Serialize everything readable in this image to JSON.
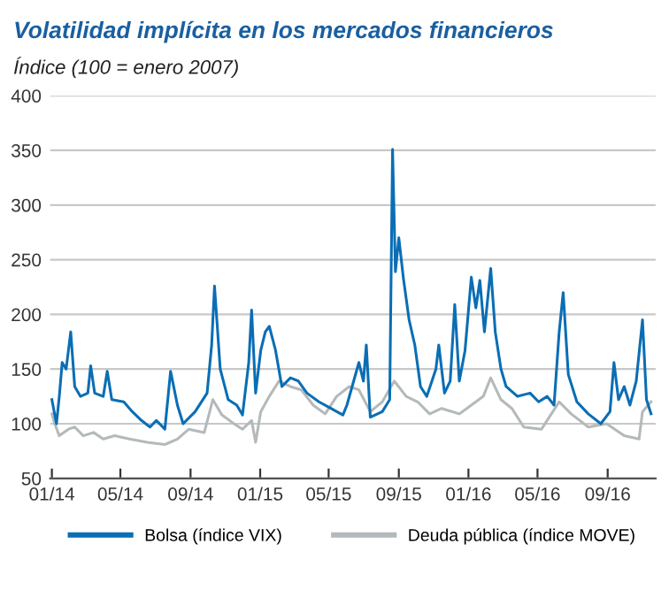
{
  "chart_data": {
    "type": "line",
    "title": "Volatilidad implícita en los mercados financieros",
    "subtitle": "Índice (100 = enero 2007)",
    "xlim": [
      "2013-12-29",
      "2016-11-24"
    ],
    "xticks": [
      {
        "value": "2014-01-01",
        "label": "01/14"
      },
      {
        "value": "2014-05-01",
        "label": "05/14"
      },
      {
        "value": "2014-09-01",
        "label": "09/14"
      },
      {
        "value": "2015-01-01",
        "label": "01/15"
      },
      {
        "value": "2015-05-01",
        "label": "05/15"
      },
      {
        "value": "2015-09-01",
        "label": "09/15"
      },
      {
        "value": "2016-01-01",
        "label": "01/16"
      },
      {
        "value": "2016-05-01",
        "label": "05/16"
      },
      {
        "value": "2016-09-01",
        "label": "09/16"
      }
    ],
    "ylim": [
      50,
      400
    ],
    "yticks": [
      50,
      100,
      150,
      200,
      250,
      300,
      350,
      400
    ],
    "grid": "y",
    "legend": "bottom",
    "line_style": "solid",
    "series": [
      {
        "name": "Bolsa (índice VIX)",
        "color": "#0a6eb4",
        "x": [
          "2014-01-01",
          "2014-01-09",
          "2014-01-14",
          "2014-01-19",
          "2014-01-26",
          "2014-02-03",
          "2014-02-10",
          "2014-02-20",
          "2014-03-05",
          "2014-03-10",
          "2014-03-17",
          "2014-04-01",
          "2014-04-08",
          "2014-04-16",
          "2014-05-07",
          "2014-05-22",
          "2014-06-07",
          "2014-06-22",
          "2014-07-03",
          "2014-07-18",
          "2014-07-28",
          "2014-08-09",
          "2014-08-19",
          "2014-09-09",
          "2014-09-30",
          "2014-10-08",
          "2014-10-13",
          "2014-10-23",
          "2014-11-06",
          "2014-11-21",
          "2014-12-01",
          "2014-12-12",
          "2014-12-17",
          "2014-12-24",
          "2015-01-02",
          "2015-01-10",
          "2015-01-17",
          "2015-01-28",
          "2015-02-08",
          "2015-02-23",
          "2015-03-09",
          "2015-03-24",
          "2015-04-14",
          "2015-05-05",
          "2015-05-26",
          "2015-06-02",
          "2015-06-23",
          "2015-07-01",
          "2015-07-06",
          "2015-07-13",
          "2015-08-03",
          "2015-08-16",
          "2015-08-21",
          "2015-08-26",
          "2015-09-01",
          "2015-09-09",
          "2015-09-19",
          "2015-09-29",
          "2015-10-09",
          "2015-10-20",
          "2015-11-05",
          "2015-11-10",
          "2015-11-20",
          "2015-11-30",
          "2015-12-08",
          "2015-12-16",
          "2015-12-26",
          "2016-01-06",
          "2016-01-14",
          "2016-01-21",
          "2016-01-29",
          "2016-02-09",
          "2016-02-17",
          "2016-02-27",
          "2016-03-07",
          "2016-03-27",
          "2016-04-18",
          "2016-05-03",
          "2016-05-18",
          "2016-05-30",
          "2016-06-08",
          "2016-06-15",
          "2016-06-24",
          "2016-07-09",
          "2016-07-29",
          "2016-08-20",
          "2016-09-05",
          "2016-09-12",
          "2016-09-20",
          "2016-09-30",
          "2016-10-10",
          "2016-10-21",
          "2016-11-01",
          "2016-11-08",
          "2016-11-16"
        ],
        "values": [
          122,
          100,
          125,
          156,
          150,
          184,
          134,
          125,
          128,
          153,
          128,
          125,
          148,
          122,
          120,
          111,
          103,
          97,
          103,
          95,
          148,
          117,
          100,
          111,
          128,
          172,
          226,
          150,
          122,
          117,
          108,
          156,
          204,
          128,
          167,
          184,
          189,
          167,
          134,
          142,
          139,
          128,
          120,
          114,
          108,
          117,
          156,
          139,
          172,
          106,
          111,
          122,
          351,
          239,
          270,
          233,
          195,
          172,
          134,
          125,
          150,
          172,
          128,
          139,
          209,
          139,
          167,
          234,
          206,
          231,
          184,
          242,
          184,
          150,
          134,
          125,
          128,
          120,
          125,
          117,
          184,
          220,
          145,
          120,
          109,
          100,
          111,
          156,
          122,
          134,
          117,
          139,
          195,
          122,
          109
        ]
      },
      {
        "name": "Deuda pública (índice MOVE)",
        "color": "#b4b9bb",
        "x": [
          "2014-01-01",
          "2014-01-06",
          "2014-01-14",
          "2014-01-30",
          "2014-02-10",
          "2014-02-25",
          "2014-03-15",
          "2014-04-01",
          "2014-04-21",
          "2014-05-17",
          "2014-06-17",
          "2014-07-18",
          "2014-08-09",
          "2014-08-29",
          "2014-09-25",
          "2014-10-10",
          "2014-10-26",
          "2014-11-16",
          "2014-12-01",
          "2014-12-17",
          "2014-12-24",
          "2015-01-02",
          "2015-01-17",
          "2015-02-03",
          "2015-02-23",
          "2015-03-14",
          "2015-04-04",
          "2015-04-25",
          "2015-05-15",
          "2015-06-06",
          "2015-06-23",
          "2015-07-13",
          "2015-08-03",
          "2015-08-24",
          "2015-09-14",
          "2015-10-04",
          "2015-10-25",
          "2015-11-15",
          "2015-12-16",
          "2016-01-06",
          "2016-01-27",
          "2016-02-09",
          "2016-02-27",
          "2016-03-17",
          "2016-04-07",
          "2016-05-08",
          "2016-06-08",
          "2016-06-29",
          "2016-07-29",
          "2016-08-30",
          "2016-09-30",
          "2016-10-26",
          "2016-11-01",
          "2016-11-16"
        ],
        "values": [
          109,
          100,
          89,
          95,
          97,
          89,
          92,
          86,
          89,
          86,
          83,
          81,
          86,
          95,
          92,
          122,
          108,
          100,
          95,
          103,
          83,
          111,
          125,
          139,
          134,
          131,
          117,
          109,
          125,
          134,
          131,
          111,
          120,
          139,
          125,
          120,
          109,
          114,
          109,
          117,
          125,
          142,
          122,
          114,
          97,
          95,
          120,
          109,
          97,
          100,
          89,
          86,
          111,
          120
        ]
      }
    ]
  }
}
